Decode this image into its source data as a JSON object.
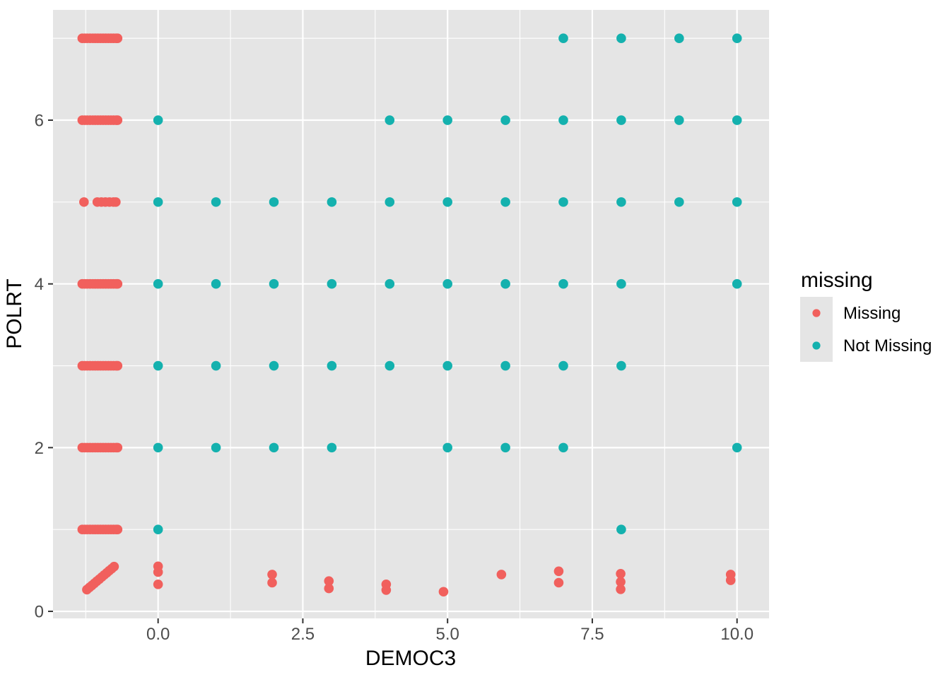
{
  "colors": {
    "panel_bg": "#E5E5E5",
    "grid": "#FFFFFF",
    "tick_mark": "#333333",
    "tick_text": "#4D4D4D",
    "missing": "#F1605D",
    "not_missing": "#14B1AE",
    "legend_key_bg": "#E5E5E5"
  },
  "legend": {
    "title": "missing",
    "items": [
      {
        "label": "Missing",
        "color": "#F1605D"
      },
      {
        "label": "Not Missing",
        "color": "#14B1AE"
      }
    ]
  },
  "chart_data": {
    "type": "scatter",
    "title": "",
    "xlabel": "DEMOC3",
    "ylabel": "POLRT",
    "xlim": [
      -1.815,
      10.553
    ],
    "ylim": [
      -0.086,
      7.347
    ],
    "grid": true,
    "legend_position": "right",
    "x_axis": {
      "tick_values": [
        0,
        2.5,
        5,
        7.5,
        10
      ],
      "tick_labels": [
        "0.0",
        "2.5",
        "5.0",
        "7.5",
        "10.0"
      ],
      "minor_breaks": [
        -1.25,
        1.25,
        3.75,
        6.25,
        8.75
      ]
    },
    "y_axis": {
      "tick_values": [
        0,
        2,
        4,
        6
      ],
      "tick_labels": [
        "0",
        "2",
        "4",
        "6"
      ],
      "minor_breaks": [
        1,
        3,
        5,
        7
      ]
    },
    "series": [
      {
        "name": "Missing",
        "color": "#F1605D",
        "note": "jittered NA values clustered near x=-1",
        "rows": [
          {
            "y": 7,
            "x": [
              -1.31,
              -1.265,
              -1.22,
              -1.175,
              -1.13,
              -1.085,
              -1.04,
              -0.995,
              -0.95,
              -0.905,
              -0.86,
              -0.815,
              -0.77,
              -0.725,
              -0.7
            ]
          },
          {
            "y": 6,
            "x": [
              -1.31,
              -1.265,
              -1.22,
              -1.175,
              -1.13,
              -1.085,
              -1.04,
              -0.995,
              -0.95,
              -0.905,
              -0.86,
              -0.815,
              -0.77,
              -0.725,
              -0.7
            ]
          },
          {
            "y": 5,
            "x": [
              -1.28,
              -1.05,
              -0.98,
              -0.91,
              -0.84,
              -0.77,
              -0.73
            ]
          },
          {
            "y": 4,
            "x": [
              -1.31,
              -1.265,
              -1.22,
              -1.175,
              -1.13,
              -1.085,
              -1.04,
              -0.995,
              -0.95,
              -0.905,
              -0.86,
              -0.815,
              -0.77,
              -0.725,
              -0.7
            ]
          },
          {
            "y": 3,
            "x": [
              -1.31,
              -1.265,
              -1.22,
              -1.175,
              -1.13,
              -1.085,
              -1.04,
              -0.995,
              -0.95,
              -0.905,
              -0.86,
              -0.815,
              -0.77,
              -0.725,
              -0.7
            ]
          },
          {
            "y": 2,
            "x": [
              -1.31,
              -1.265,
              -1.22,
              -1.175,
              -1.13,
              -1.085,
              -1.04,
              -0.995,
              -0.95,
              -0.905,
              -0.86,
              -0.815,
              -0.77,
              -0.725,
              -0.7
            ]
          },
          {
            "y": 1,
            "x": [
              -1.31,
              -1.265,
              -1.22,
              -1.175,
              -1.13,
              -1.085,
              -1.04,
              -0.995,
              -0.95,
              -0.905,
              -0.86,
              -0.815,
              -0.77,
              -0.725,
              -0.7
            ]
          }
        ],
        "points": [
          [
            -1.23,
            0.265
          ],
          [
            -1.187,
            0.291
          ],
          [
            -1.144,
            0.316
          ],
          [
            -1.101,
            0.342
          ],
          [
            -1.059,
            0.368
          ],
          [
            -1.016,
            0.393
          ],
          [
            -0.973,
            0.419
          ],
          [
            -0.93,
            0.445
          ],
          [
            -0.887,
            0.47
          ],
          [
            -0.845,
            0.496
          ],
          [
            -0.802,
            0.521
          ],
          [
            -0.76,
            0.547
          ],
          [
            0,
            0.55
          ],
          [
            0,
            0.48
          ],
          [
            0,
            0.33
          ],
          [
            1.97,
            0.45
          ],
          [
            1.97,
            0.35
          ],
          [
            2.95,
            0.37
          ],
          [
            2.95,
            0.28
          ],
          [
            3.94,
            0.33
          ],
          [
            3.94,
            0.26
          ],
          [
            4.93,
            0.24
          ],
          [
            5.93,
            0.45
          ],
          [
            6.92,
            0.49
          ],
          [
            6.92,
            0.35
          ],
          [
            7.99,
            0.46
          ],
          [
            7.99,
            0.36
          ],
          [
            7.99,
            0.27
          ],
          [
            9.89,
            0.45
          ],
          [
            9.89,
            0.38
          ]
        ]
      },
      {
        "name": "Not Missing",
        "color": "#14B1AE",
        "rows": [
          {
            "y": 7,
            "x": [
              7,
              8,
              9,
              10
            ]
          },
          {
            "y": 6,
            "x": [
              0,
              4,
              5,
              6,
              7,
              8,
              9,
              10
            ]
          },
          {
            "y": 5,
            "x": [
              0,
              1,
              2,
              3,
              4,
              5,
              6,
              7,
              8,
              9,
              10
            ]
          },
          {
            "y": 4,
            "x": [
              0,
              1,
              2,
              3,
              4,
              5,
              6,
              7,
              8,
              10
            ]
          },
          {
            "y": 3,
            "x": [
              0,
              1,
              2,
              3,
              4,
              5,
              6,
              7,
              8
            ]
          },
          {
            "y": 2,
            "x": [
              0,
              1,
              2,
              3,
              5,
              6,
              7,
              10
            ]
          },
          {
            "y": 1,
            "x": [
              0,
              8
            ]
          }
        ],
        "points": []
      }
    ]
  }
}
